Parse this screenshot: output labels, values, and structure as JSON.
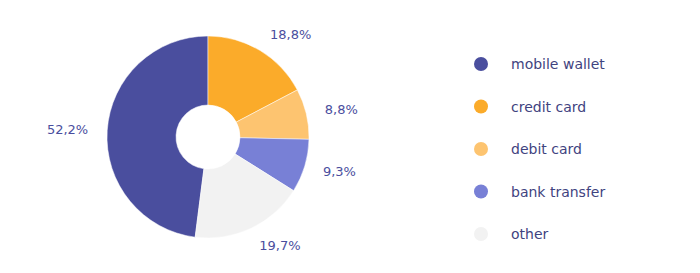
{
  "chart_data": {
    "type": "donut",
    "categories": [
      "mobile wallet",
      "credit card",
      "debit card",
      "bank transfer",
      "other"
    ],
    "values": [
      52.2,
      18.8,
      8.8,
      9.3,
      19.7
    ],
    "value_labels": [
      "52,2%",
      "18,8%",
      "8,8%",
      "9,3%",
      "19,7%"
    ],
    "colors": [
      "#4a4e9e",
      "#fbab2a",
      "#fdc470",
      "#7880d6",
      "#f2f2f2"
    ],
    "data_labels": true,
    "legend": "right"
  }
}
